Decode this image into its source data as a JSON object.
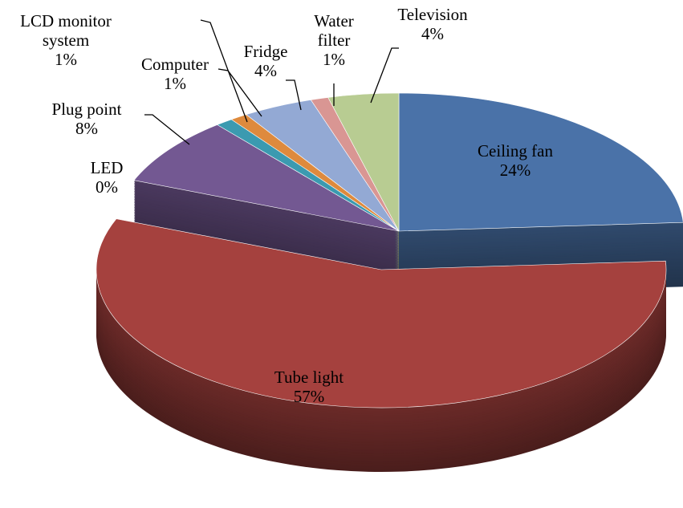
{
  "chart_data": {
    "type": "pie3d",
    "categories": [
      "Ceiling fan",
      "Tube light",
      "LED",
      "Plug point",
      "LCD monitor system",
      "Computer",
      "Fridge",
      "Water filter",
      "Television"
    ],
    "values": [
      24,
      57,
      0,
      8,
      1,
      1,
      4,
      1,
      4
    ],
    "value_labels": [
      "24%",
      "57%",
      "0%",
      "8%",
      "1%",
      "1%",
      "4%",
      "1%",
      "4%"
    ],
    "colors": [
      "#4a72a8",
      "#a5413e",
      "#8aab4a",
      "#735892",
      "#3b9ab0",
      "#de8a3d",
      "#93a9d4",
      "#d99693",
      "#b8cc92"
    ],
    "exploded": "Tube light"
  }
}
